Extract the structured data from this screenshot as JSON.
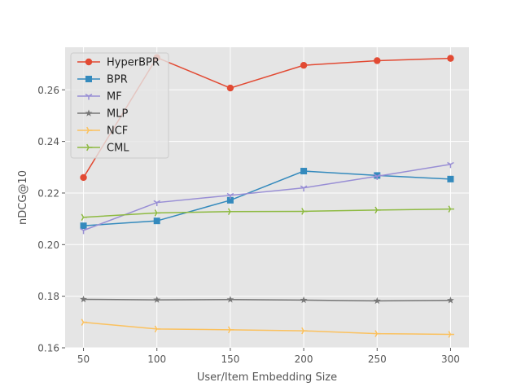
{
  "chart_data": {
    "type": "line",
    "xlabel": "User/Item Embedding Size",
    "ylabel": "nDCG@10",
    "x": [
      50,
      100,
      150,
      200,
      250,
      300
    ],
    "xlim": [
      37.5,
      312.5
    ],
    "ylim": [
      0.16,
      0.2765
    ],
    "xticks": [
      50,
      100,
      150,
      200,
      250,
      300
    ],
    "yticks": [
      0.16,
      0.18,
      0.2,
      0.22,
      0.24,
      0.26
    ],
    "ytick_labels": [
      "0.16",
      "0.18",
      "0.20",
      "0.22",
      "0.24",
      "0.26"
    ],
    "grid": true,
    "legend_position": "top-left",
    "series": [
      {
        "name": "HyperBPR",
        "color": "#E24A33",
        "marker": "circle",
        "values": [
          0.226,
          0.2725,
          0.2607,
          0.2695,
          0.2713,
          0.2722
        ]
      },
      {
        "name": "BPR",
        "color": "#348ABD",
        "marker": "square",
        "values": [
          0.2073,
          0.2092,
          0.2172,
          0.2285,
          0.2268,
          0.2254
        ]
      },
      {
        "name": "MF",
        "color": "#988ED5",
        "marker": "tri-down",
        "values": [
          0.2055,
          0.2163,
          0.2191,
          0.222,
          0.2265,
          0.2311
        ]
      },
      {
        "name": "MLP",
        "color": "#777777",
        "marker": "star",
        "values": [
          0.1788,
          0.1786,
          0.1787,
          0.1785,
          0.1782,
          0.1784
        ]
      },
      {
        "name": "NCF",
        "color": "#FBC15E",
        "marker": "tri-right",
        "values": [
          0.1699,
          0.1673,
          0.167,
          0.1666,
          0.1655,
          0.1652
        ]
      },
      {
        "name": "CML",
        "color": "#8EBA42",
        "marker": "tri-right",
        "values": [
          0.2106,
          0.2123,
          0.2128,
          0.2129,
          0.2134,
          0.2138
        ]
      }
    ]
  }
}
